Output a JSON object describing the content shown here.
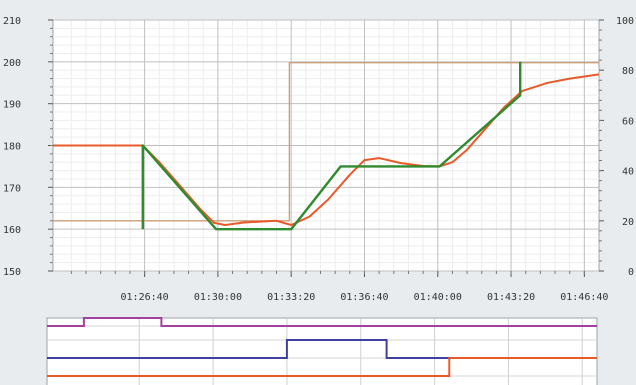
{
  "chart_data": [
    {
      "type": "line",
      "title": "",
      "xlabel": "",
      "ylabel": "",
      "x_tick_labels": [
        "01:26:40",
        "01:30:00",
        "01:33:20",
        "01:36:40",
        "01:40:00",
        "01:43:20",
        "01:46:40"
      ],
      "x_tick_values_s": [
        5200,
        5400,
        5600,
        5800,
        6000,
        6200,
        6400
      ],
      "xlim_s": [
        4950,
        6440
      ],
      "y_left": {
        "ylim": [
          150,
          210
        ],
        "ticks": [
          150,
          160,
          170,
          180,
          190,
          200,
          210
        ]
      },
      "y_right": {
        "ylim": [
          0,
          100
        ],
        "ticks": [
          0,
          20,
          40,
          60,
          80,
          100
        ]
      },
      "grid": true,
      "series": [
        {
          "color": "#e85a2a",
          "axis": "left",
          "points": [
            [
              4950,
              180
            ],
            [
              5195,
              180
            ],
            [
              5240,
              176
            ],
            [
              5300,
              170
            ],
            [
              5350,
              165
            ],
            [
              5390,
              161.5
            ],
            [
              5420,
              161
            ],
            [
              5470,
              161.6
            ],
            [
              5560,
              162
            ],
            [
              5600,
              161
            ],
            [
              5650,
              163
            ],
            [
              5700,
              167
            ],
            [
              5760,
              173
            ],
            [
              5800,
              176.5
            ],
            [
              5840,
              177
            ],
            [
              5900,
              175.8
            ],
            [
              5960,
              175.1
            ],
            [
              6005,
              175
            ],
            [
              6040,
              176
            ],
            [
              6080,
              179
            ],
            [
              6130,
              184
            ],
            [
              6180,
              189
            ],
            [
              6230,
              193
            ],
            [
              6300,
              195
            ],
            [
              6360,
              196
            ],
            [
              6440,
              197
            ]
          ]
        },
        {
          "color": "#2e8b2e",
          "axis": "left",
          "points": [
            [
              5195,
              160
            ],
            [
              5195,
              180
            ],
            [
              5395,
              160
            ],
            [
              5600,
              160
            ],
            [
              5735,
              175
            ],
            [
              6005,
              175
            ],
            [
              6225,
              192
            ],
            [
              6225,
              200
            ]
          ]
        },
        {
          "color": "#c9a078",
          "axis": "right",
          "points": [
            [
              4950,
              20
            ],
            [
              5595,
              20
            ],
            [
              5595,
              83
            ],
            [
              6440,
              83
            ]
          ]
        }
      ]
    },
    {
      "type": "line",
      "title": "",
      "xlim_s": [
        4950,
        6440
      ],
      "ylim": [
        0,
        4
      ],
      "grid": true,
      "series": [
        {
          "color": "#a040a0",
          "points": [
            [
              4950,
              3
            ],
            [
              5050,
              3
            ],
            [
              5050,
              4
            ],
            [
              5260,
              4
            ],
            [
              5260,
              3
            ],
            [
              6440,
              3
            ]
          ]
        },
        {
          "color": "#4040a0",
          "points": [
            [
              4950,
              1
            ],
            [
              5600,
              1
            ],
            [
              5600,
              2
            ],
            [
              5870,
              2
            ],
            [
              5870,
              1
            ],
            [
              6440,
              1
            ]
          ]
        },
        {
          "color": "#e85a2a",
          "points": [
            [
              4950,
              0
            ],
            [
              6040,
              0
            ],
            [
              6040,
              1
            ],
            [
              6440,
              1
            ]
          ]
        }
      ]
    }
  ]
}
